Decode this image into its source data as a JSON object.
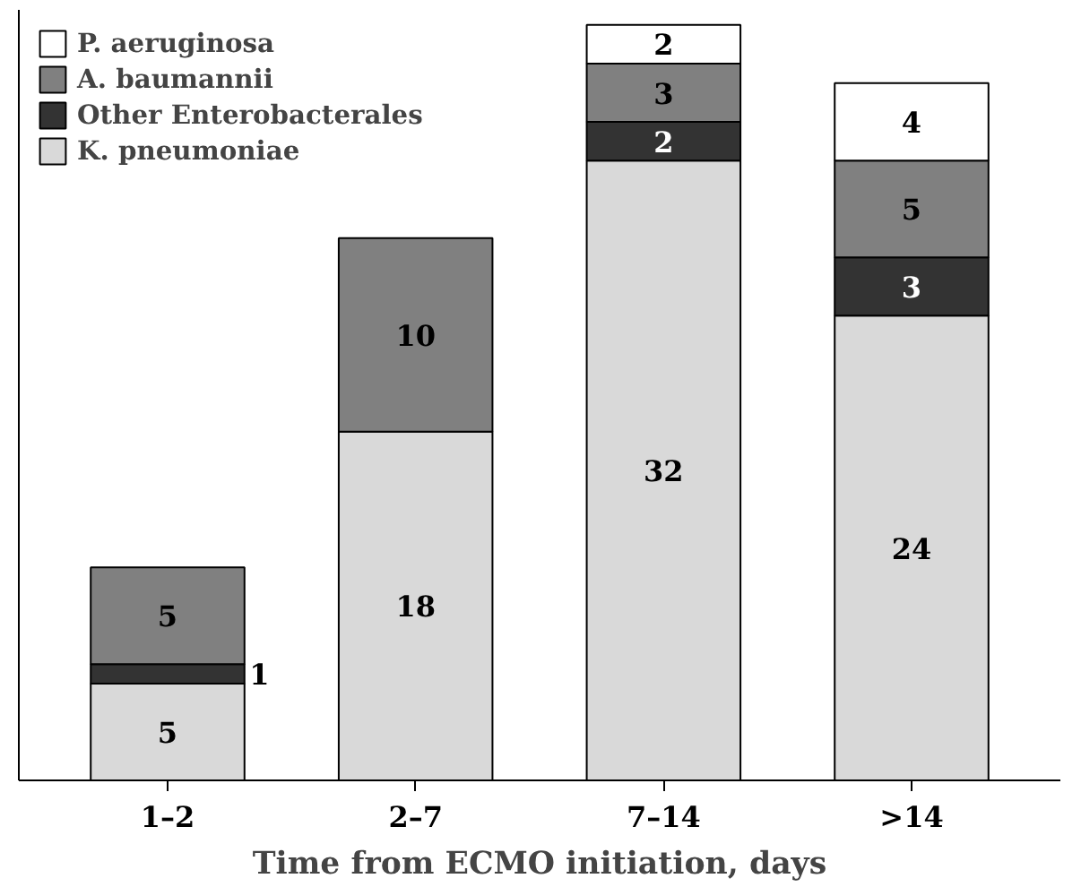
{
  "chart_data": {
    "type": "bar",
    "stacked": true,
    "data_labels": true,
    "legend": "top left",
    "grid": false,
    "xlabel": "Time from ECMO initiation, days",
    "categories": [
      "1–2",
      "2–7",
      "7–14",
      ">14"
    ],
    "series": [
      {
        "name": "K. pneumoniae",
        "color": "#d9d9d9",
        "values": [
          5,
          18,
          32,
          24
        ]
      },
      {
        "name": "Other Enterobacterales",
        "color": "#333333",
        "values": [
          1,
          null,
          2,
          3
        ]
      },
      {
        "name": "A. baumannii",
        "color": "#808080",
        "values": [
          5,
          10,
          3,
          5
        ]
      },
      {
        "name": "P. aeruginosa",
        "color": "#ffffff",
        "values": [
          null,
          null,
          2,
          4
        ]
      }
    ]
  }
}
